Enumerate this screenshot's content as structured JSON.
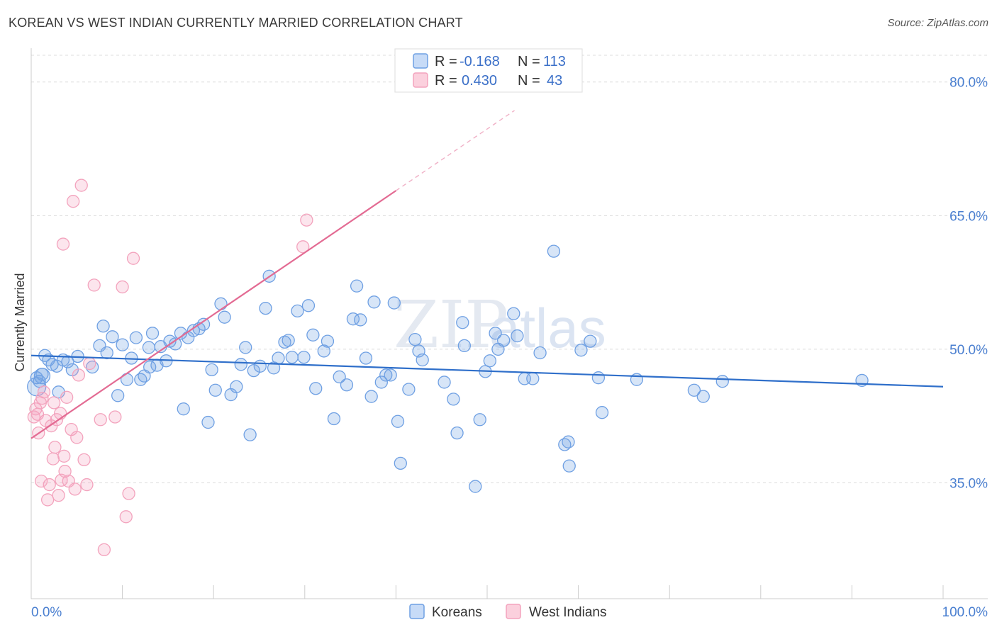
{
  "title": "KOREAN VS WEST INDIAN CURRENTLY MARRIED CORRELATION CHART",
  "source": "Source: ZipAtlas.com",
  "chart_data": {
    "type": "scatter",
    "title": "KOREAN VS WEST INDIAN CURRENTLY MARRIED CORRELATION CHART",
    "xlabel": "",
    "ylabel": "Currently Married",
    "xlim": [
      0,
      100
    ],
    "ylim": [
      22,
      83
    ],
    "x_tick_labels": [
      "0.0%",
      "100.0%"
    ],
    "y_ticks": [
      35,
      50,
      65,
      80
    ],
    "y_tick_labels": [
      "35.0%",
      "50.0%",
      "65.0%",
      "80.0%"
    ],
    "grid": true,
    "watermark": "ZIPatlas",
    "legend": {
      "top": [
        {
          "r_label": "R =",
          "r_value": "-0.168",
          "n_label": "N =",
          "n_value": "113"
        },
        {
          "r_label": "R =",
          "r_value": "0.430",
          "n_label": "N =",
          "n_value": "43"
        }
      ],
      "bottom": [
        "Koreans",
        "West Indians"
      ]
    },
    "colors": {
      "koreans": "#6fa0e3",
      "koreans_line": "#2f6fca",
      "west_indians": "#f3a3bd",
      "west_indians_line": "#e36b93",
      "tick_label": "#4a7fd0"
    },
    "series": [
      {
        "name": "Koreans",
        "trend": {
          "x": [
            0,
            100
          ],
          "y": [
            49.3,
            45.8
          ]
        },
        "points": [
          [
            0.9,
            46.4
          ],
          [
            1.2,
            47.2
          ],
          [
            1.5,
            49.3
          ],
          [
            1.9,
            48.8
          ],
          [
            2.3,
            48.3
          ],
          [
            2.8,
            48.1
          ],
          [
            3.0,
            45.2
          ],
          [
            3.5,
            48.8
          ],
          [
            4.0,
            48.6
          ],
          [
            4.5,
            47.7
          ],
          [
            5.1,
            49.2
          ],
          [
            6.7,
            48.0
          ],
          [
            7.5,
            50.4
          ],
          [
            7.9,
            52.6
          ],
          [
            8.3,
            49.6
          ],
          [
            8.9,
            51.4
          ],
          [
            9.5,
            44.8
          ],
          [
            10.0,
            50.5
          ],
          [
            10.5,
            46.6
          ],
          [
            11.0,
            49.0
          ],
          [
            11.5,
            51.3
          ],
          [
            12.0,
            46.6
          ],
          [
            12.4,
            47.0
          ],
          [
            12.9,
            50.2
          ],
          [
            13.3,
            51.8
          ],
          [
            13.8,
            48.2
          ],
          [
            14.2,
            50.3
          ],
          [
            14.8,
            48.7
          ],
          [
            15.2,
            50.9
          ],
          [
            15.8,
            50.6
          ],
          [
            16.4,
            51.8
          ],
          [
            16.7,
            43.3
          ],
          [
            17.2,
            51.3
          ],
          [
            17.8,
            52.1
          ],
          [
            18.4,
            52.3
          ],
          [
            18.9,
            52.8
          ],
          [
            19.4,
            41.8
          ],
          [
            19.8,
            47.7
          ],
          [
            20.2,
            45.4
          ],
          [
            20.8,
            55.1
          ],
          [
            21.2,
            53.6
          ],
          [
            21.9,
            44.9
          ],
          [
            22.5,
            45.8
          ],
          [
            23.0,
            48.3
          ],
          [
            23.5,
            50.2
          ],
          [
            24.0,
            40.4
          ],
          [
            24.4,
            47.6
          ],
          [
            25.1,
            48.1
          ],
          [
            25.7,
            54.6
          ],
          [
            26.1,
            58.2
          ],
          [
            26.6,
            47.9
          ],
          [
            27.1,
            49.0
          ],
          [
            27.8,
            50.8
          ],
          [
            28.2,
            51.0
          ],
          [
            28.6,
            49.1
          ],
          [
            29.2,
            54.3
          ],
          [
            29.9,
            49.1
          ],
          [
            30.4,
            54.9
          ],
          [
            30.9,
            51.6
          ],
          [
            31.2,
            45.6
          ],
          [
            32.1,
            49.8
          ],
          [
            32.5,
            50.9
          ],
          [
            33.2,
            42.2
          ],
          [
            33.8,
            46.9
          ],
          [
            34.6,
            46.0
          ],
          [
            35.3,
            53.4
          ],
          [
            35.7,
            57.1
          ],
          [
            36.1,
            53.3
          ],
          [
            36.7,
            49.0
          ],
          [
            37.3,
            44.7
          ],
          [
            37.6,
            55.3
          ],
          [
            38.4,
            46.3
          ],
          [
            38.9,
            47.1
          ],
          [
            39.4,
            47.1
          ],
          [
            39.8,
            55.2
          ],
          [
            40.2,
            41.9
          ],
          [
            40.5,
            37.2
          ],
          [
            41.4,
            45.5
          ],
          [
            42.1,
            51.1
          ],
          [
            42.5,
            49.8
          ],
          [
            42.9,
            48.8
          ],
          [
            45.3,
            46.3
          ],
          [
            46.3,
            44.4
          ],
          [
            46.7,
            40.6
          ],
          [
            47.3,
            53.0
          ],
          [
            47.5,
            50.4
          ],
          [
            48.7,
            34.6
          ],
          [
            49.2,
            42.1
          ],
          [
            49.8,
            47.5
          ],
          [
            50.3,
            48.7
          ],
          [
            50.9,
            51.8
          ],
          [
            51.2,
            50.0
          ],
          [
            51.8,
            51.0
          ],
          [
            52.9,
            54.0
          ],
          [
            53.3,
            51.5
          ],
          [
            54.1,
            46.7
          ],
          [
            55.0,
            46.7
          ],
          [
            55.8,
            49.6
          ],
          [
            57.3,
            61.0
          ],
          [
            58.5,
            39.3
          ],
          [
            58.9,
            39.6
          ],
          [
            59.0,
            36.9
          ],
          [
            60.3,
            49.9
          ],
          [
            61.3,
            50.9
          ],
          [
            62.2,
            46.8
          ],
          [
            62.6,
            42.9
          ],
          [
            66.4,
            46.6
          ],
          [
            72.7,
            45.4
          ],
          [
            73.7,
            44.7
          ],
          [
            75.8,
            46.4
          ],
          [
            91.1,
            46.5
          ],
          [
            0.6,
            46.8
          ],
          [
            13.0,
            48.0
          ]
        ]
      },
      {
        "name": "West Indians",
        "trend": {
          "x": [
            0,
            40
          ],
          "y": [
            40.0,
            67.8
          ]
        },
        "trend_dashed": {
          "x": [
            40,
            53
          ],
          "y": [
            67.8,
            76.8
          ]
        },
        "points": [
          [
            0.3,
            42.4
          ],
          [
            0.5,
            43.3
          ],
          [
            0.8,
            40.6
          ],
          [
            1.0,
            44.0
          ],
          [
            1.2,
            44.5
          ],
          [
            1.4,
            45.2
          ],
          [
            1.6,
            42.0
          ],
          [
            1.8,
            33.1
          ],
          [
            2.0,
            34.8
          ],
          [
            2.2,
            41.4
          ],
          [
            2.4,
            37.7
          ],
          [
            2.6,
            39.0
          ],
          [
            2.8,
            42.1
          ],
          [
            3.0,
            33.6
          ],
          [
            3.3,
            35.3
          ],
          [
            3.5,
            61.8
          ],
          [
            3.6,
            38.0
          ],
          [
            3.7,
            36.3
          ],
          [
            3.9,
            44.6
          ],
          [
            4.1,
            35.2
          ],
          [
            4.4,
            41.0
          ],
          [
            4.6,
            66.6
          ],
          [
            4.8,
            34.3
          ],
          [
            5.0,
            40.1
          ],
          [
            5.2,
            47.1
          ],
          [
            5.5,
            68.4
          ],
          [
            5.8,
            37.6
          ],
          [
            6.1,
            34.8
          ],
          [
            6.4,
            48.4
          ],
          [
            1.1,
            35.2
          ],
          [
            3.2,
            42.8
          ],
          [
            6.9,
            57.2
          ],
          [
            7.6,
            42.1
          ],
          [
            8.0,
            27.5
          ],
          [
            9.2,
            42.4
          ],
          [
            10.0,
            57.0
          ],
          [
            10.4,
            31.2
          ],
          [
            10.7,
            33.8
          ],
          [
            11.2,
            60.2
          ],
          [
            29.8,
            61.5
          ],
          [
            30.2,
            64.5
          ],
          [
            2.5,
            44.0
          ],
          [
            0.7,
            42.7
          ]
        ]
      }
    ]
  }
}
